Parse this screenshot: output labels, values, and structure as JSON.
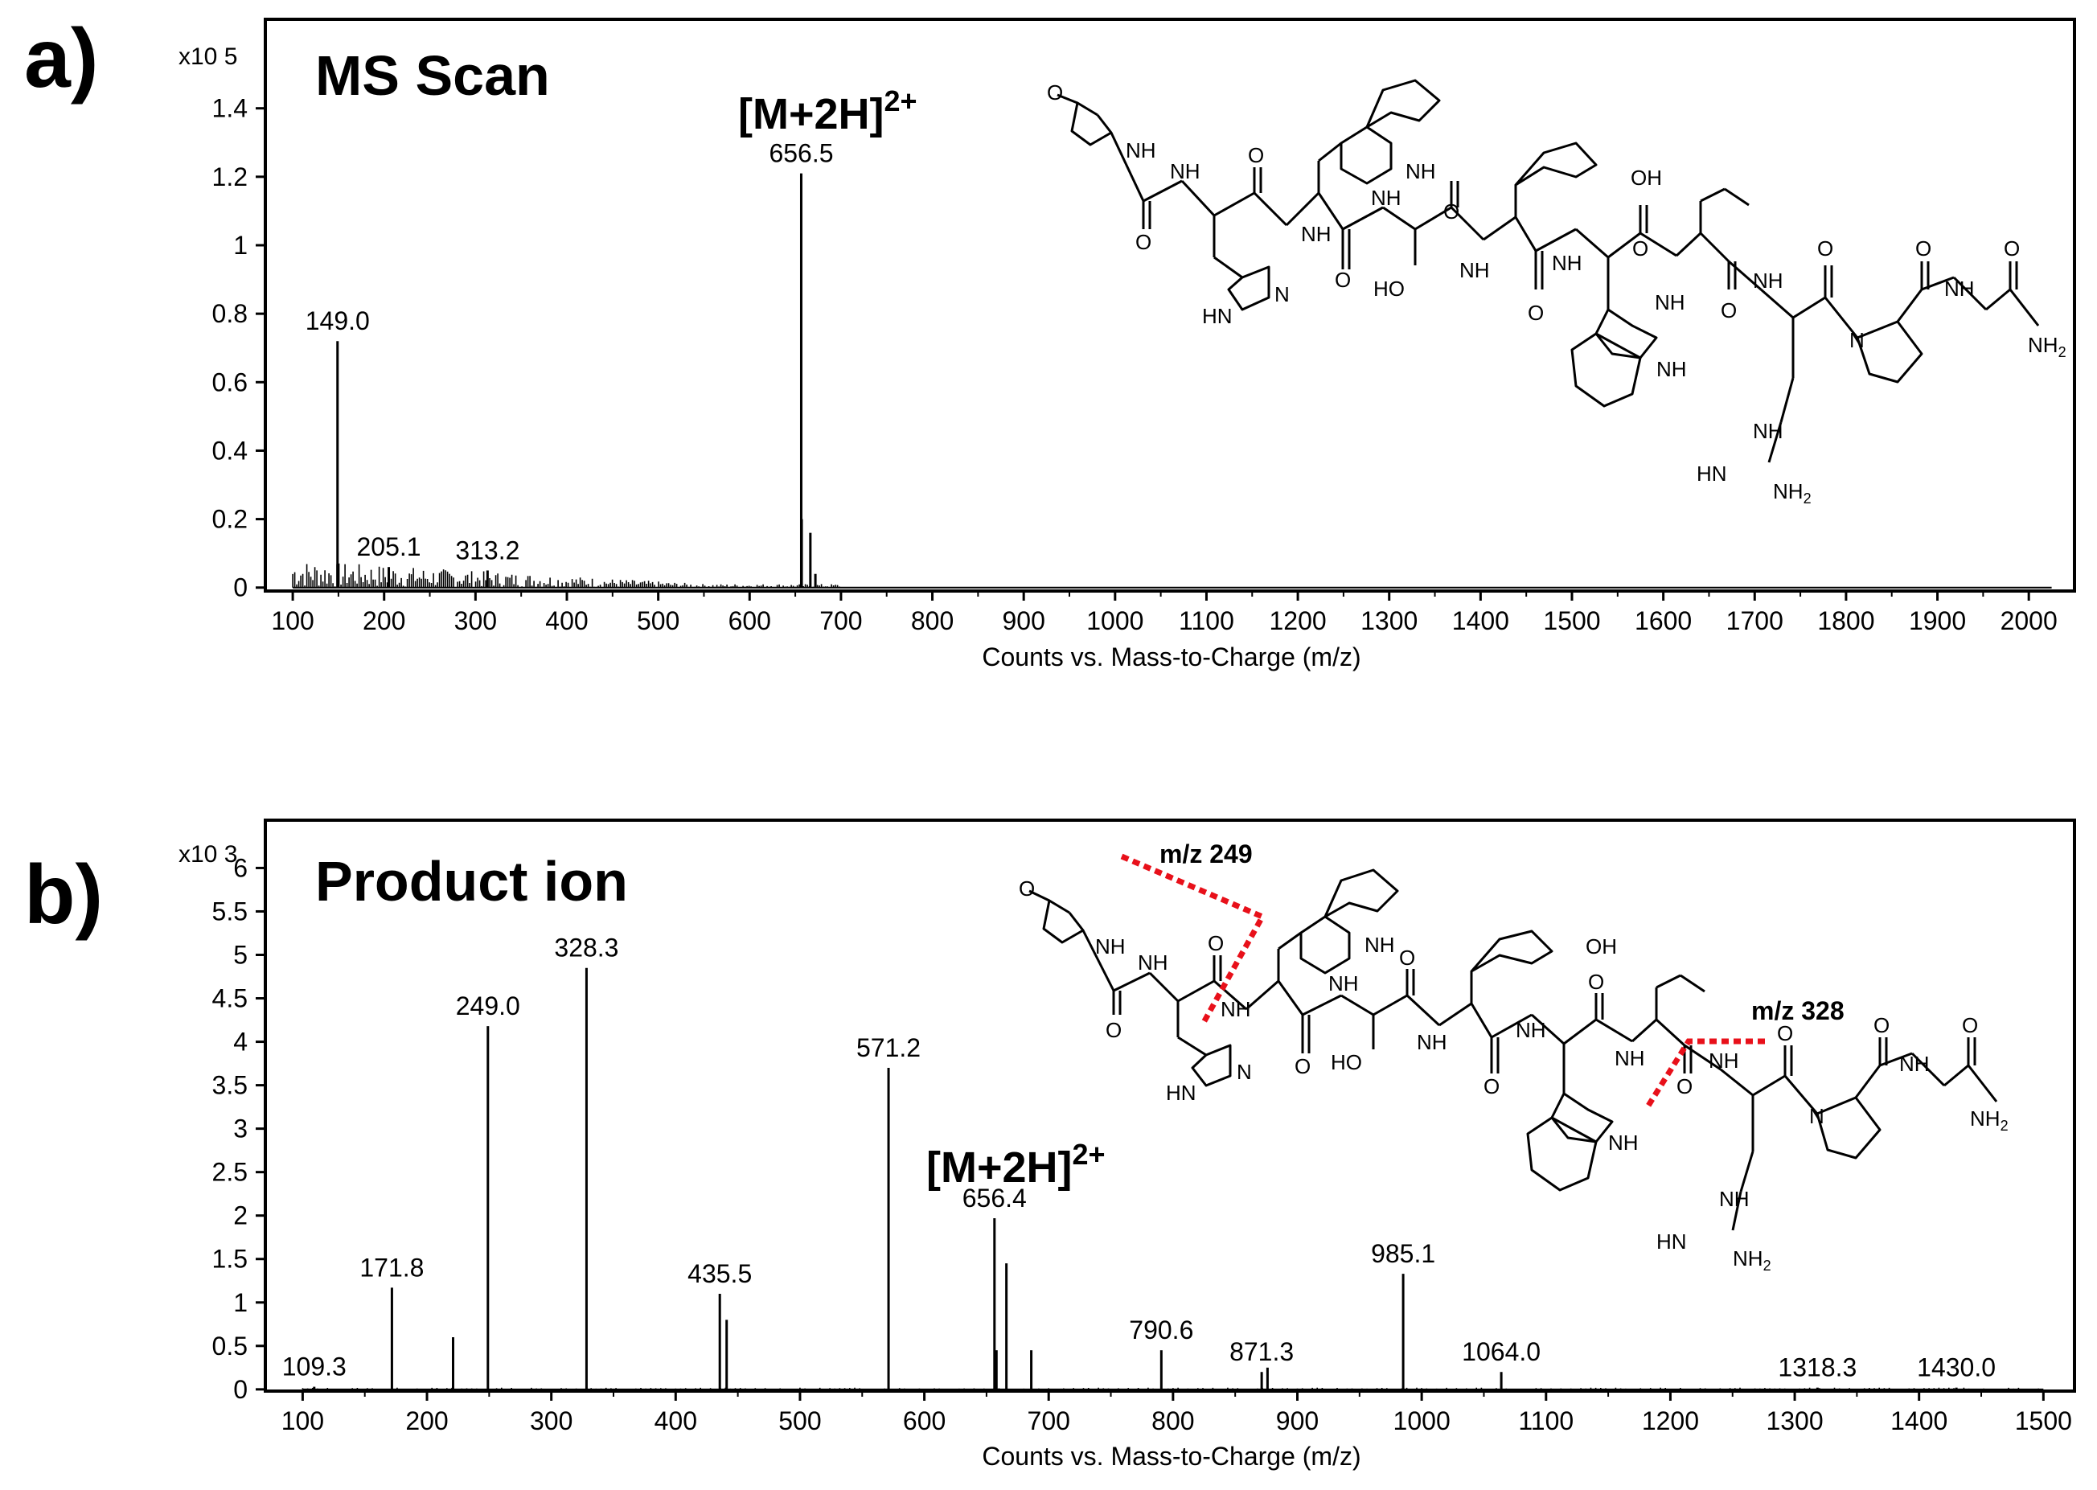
{
  "chart_data": [
    {
      "type": "bar",
      "panel_label": "a)",
      "title": "MS Scan",
      "multiplier_label": "x10 5",
      "xlabel": "Counts vs. Mass-to-Charge (m/z)",
      "xlim": [
        70,
        2050
      ],
      "ylim": [
        -0.01,
        1.66
      ],
      "x_ticks": [
        100,
        200,
        300,
        400,
        500,
        600,
        700,
        800,
        900,
        1000,
        1100,
        1200,
        1300,
        1400,
        1500,
        1600,
        1700,
        1800,
        1900,
        2000
      ],
      "x_tick_labels": [
        "100",
        "200",
        "300",
        "400",
        "500",
        "600",
        "700",
        "800",
        "900",
        "1000",
        "1100",
        "1200",
        "1300",
        "1400",
        "1500",
        "1600",
        "1700",
        "1800",
        "1900",
        "2000"
      ],
      "y_ticks": [
        0,
        0.2,
        0.4,
        0.6,
        0.8,
        1,
        1.2,
        1.4
      ],
      "y_tick_labels": [
        "0",
        "0.2",
        "0.4",
        "0.6",
        "0.8",
        "1",
        "1.2",
        "1.4"
      ],
      "peaks": [
        {
          "x": 149.0,
          "y": 0.72
        },
        {
          "x": 205.1,
          "y": 0.06
        },
        {
          "x": 313.2,
          "y": 0.05
        },
        {
          "x": 656.5,
          "y": 1.21
        },
        {
          "x": 657.0,
          "y": 0.2
        },
        {
          "x": 666.5,
          "y": 0.16
        },
        {
          "x": 672.0,
          "y": 0.04
        }
      ],
      "peak_labels": [
        {
          "x": 149.0,
          "y": 0.72,
          "text": "149.0"
        },
        {
          "x": 205.1,
          "y": 0.06,
          "text": "205.1"
        },
        {
          "x": 313.2,
          "y": 0.05,
          "text": "313.2"
        },
        {
          "x": 656.5,
          "y": 1.21,
          "text": "656.5"
        }
      ],
      "ion_label": {
        "main": "[M+2H]",
        "superscript": "2+"
      }
    },
    {
      "type": "bar",
      "panel_label": "b)",
      "title": "Product ion",
      "multiplier_label": "x10 3",
      "xlabel": "Counts vs. Mass-to-Charge (m/z)",
      "xlim": [
        70,
        1525
      ],
      "ylim": [
        -0.02,
        6.55
      ],
      "x_ticks": [
        100,
        200,
        300,
        400,
        500,
        600,
        700,
        800,
        900,
        1000,
        1100,
        1200,
        1300,
        1400,
        1500
      ],
      "x_tick_labels": [
        "100",
        "200",
        "300",
        "400",
        "500",
        "600",
        "700",
        "800",
        "900",
        "1000",
        "1100",
        "1200",
        "1300",
        "1400",
        "1500"
      ],
      "y_ticks": [
        0,
        0.5,
        1,
        1.5,
        2,
        2.5,
        3,
        3.5,
        4,
        4.5,
        5,
        5.5,
        6
      ],
      "y_tick_labels": [
        "0",
        "0.5",
        "1",
        "1.5",
        "2",
        "2.5",
        "3",
        "3.5",
        "4",
        "4.5",
        "5",
        "5.5",
        "6"
      ],
      "peaks": [
        {
          "x": 109.3,
          "y": 0.03
        },
        {
          "x": 171.8,
          "y": 1.17
        },
        {
          "x": 221.0,
          "y": 0.6
        },
        {
          "x": 249.0,
          "y": 4.18
        },
        {
          "x": 328.3,
          "y": 4.85
        },
        {
          "x": 435.5,
          "y": 1.1
        },
        {
          "x": 441.0,
          "y": 0.8
        },
        {
          "x": 571.2,
          "y": 3.7
        },
        {
          "x": 656.4,
          "y": 1.97
        },
        {
          "x": 658.0,
          "y": 0.45
        },
        {
          "x": 666.0,
          "y": 1.45
        },
        {
          "x": 686.0,
          "y": 0.45
        },
        {
          "x": 790.6,
          "y": 0.45
        },
        {
          "x": 871.3,
          "y": 0.2
        },
        {
          "x": 876.0,
          "y": 0.25
        },
        {
          "x": 985.1,
          "y": 1.33
        },
        {
          "x": 1064.0,
          "y": 0.2
        },
        {
          "x": 1318.3,
          "y": 0.02
        },
        {
          "x": 1430.0,
          "y": 0.02
        }
      ],
      "peak_labels": [
        {
          "x": 109.3,
          "y": 0.03,
          "text": "109.3"
        },
        {
          "x": 171.8,
          "y": 1.17,
          "text": "171.8"
        },
        {
          "x": 249.0,
          "y": 4.18,
          "text": "249.0"
        },
        {
          "x": 328.3,
          "y": 4.85,
          "text": "328.3"
        },
        {
          "x": 435.5,
          "y": 1.1,
          "text": "435.5"
        },
        {
          "x": 571.2,
          "y": 3.7,
          "text": "571.2"
        },
        {
          "x": 656.4,
          "y": 1.97,
          "text": "656.4"
        },
        {
          "x": 790.6,
          "y": 0.45,
          "text": "790.6"
        },
        {
          "x": 871.3,
          "y": 0.2,
          "text": "871.3"
        },
        {
          "x": 985.1,
          "y": 1.33,
          "text": "985.1"
        },
        {
          "x": 1064.0,
          "y": 0.2,
          "text": "1064.0"
        },
        {
          "x": 1318.3,
          "y": 0.02,
          "text": "1318.3"
        },
        {
          "x": 1430.0,
          "y": 0.02,
          "text": "1430.0"
        }
      ],
      "ion_label": {
        "main": "[M+2H]",
        "superscript": "2+"
      },
      "fragment_labels": [
        "m/z 249",
        "m/z 328"
      ]
    }
  ],
  "structure_labels": {
    "nh": "NH",
    "n": "N",
    "oh": "OH",
    "ho": "HO",
    "o": "O",
    "hn": "HN",
    "h": "H",
    "nh2": "NH",
    "sub2": "2"
  },
  "colors": {
    "cleavage": "#e8101a",
    "ink": "#000000"
  }
}
